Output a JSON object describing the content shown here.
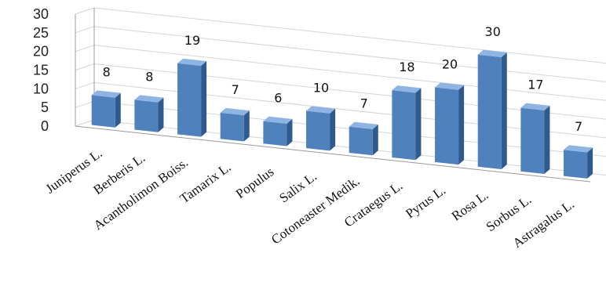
{
  "chart_data": {
    "type": "bar",
    "style": "3d-column",
    "categories": [
      "Juniperus L.",
      "Berberis L.",
      "Acantholimon Boiss.",
      "Tamarix L.",
      "Populus",
      "Salix L.",
      "Cotoneaster Medik.",
      "Crataegus L.",
      "Pyrus L.",
      "Rosa L.",
      "Sorbus L.",
      "Astragalus L."
    ],
    "values": [
      8,
      8,
      19,
      7,
      6,
      10,
      7,
      18,
      20,
      30,
      17,
      7
    ],
    "y_ticks": [
      "0",
      "5",
      "10",
      "15",
      "20",
      "25",
      "30"
    ],
    "ylim": [
      0,
      30
    ],
    "grid": true,
    "legend": "none",
    "colors": {
      "bar_front": "#4F81BD",
      "bar_side": "#2E5A8E",
      "bar_top": "#8EB4E3"
    }
  }
}
